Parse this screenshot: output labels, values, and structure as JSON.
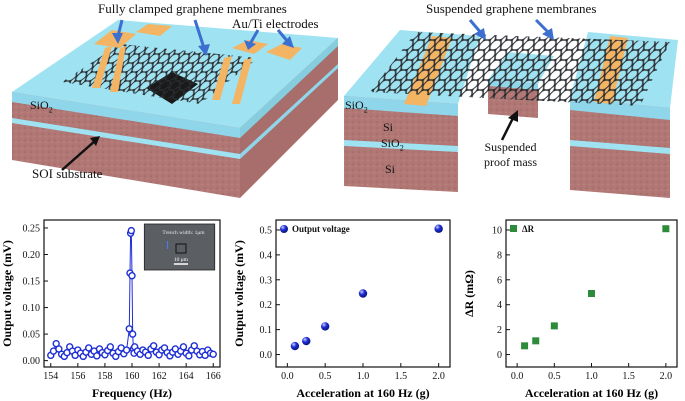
{
  "diagram_left": {
    "labels": {
      "fully_clamped": "Fully clamped graphene membranes",
      "electrodes": "Au/Ti electrodes",
      "sio2": "SiO",
      "sio2_sub": "2",
      "soi": "SOI substrate"
    }
  },
  "diagram_right": {
    "labels": {
      "suspended_membranes": "Suspended graphene membranes",
      "sio2_top": "SiO",
      "sio2_top_sub": "2",
      "si_upper": "Si",
      "sio2_mid": "SiO",
      "sio2_mid_sub": "2",
      "si_lower": "Si",
      "proof_mass_line1": "Suspended",
      "proof_mass_line2": "proof mass"
    }
  },
  "colors": {
    "sio2": "#9fe3f2",
    "substrate": "#b27a76",
    "electrode": "#f3b463",
    "graphene": "#3a3f48",
    "marker_blue": "#1f2fd6",
    "marker_green": "#2e8b3a"
  },
  "chart_data": [
    {
      "type": "line",
      "xlabel": "Frequency (Hz)",
      "ylabel": "Output voltage (mV)",
      "xlim": [
        153.5,
        166.5
      ],
      "ylim": [
        -0.012,
        0.265
      ],
      "xticks": [
        154,
        156,
        158,
        160,
        162,
        164,
        166
      ],
      "yticks": [
        0.0,
        0.05,
        0.1,
        0.15,
        0.2,
        0.25
      ],
      "inset": {
        "text": "Trench width: 1μm",
        "scale": "10 μm"
      },
      "series": [
        {
          "x": [
            154.0,
            154.2,
            154.4,
            154.6,
            154.8,
            155.0,
            155.2,
            155.4,
            155.6,
            155.8,
            156.0,
            156.2,
            156.4,
            156.6,
            156.8,
            157.0,
            157.2,
            157.4,
            157.6,
            157.8,
            158.0,
            158.2,
            158.4,
            158.6,
            158.8,
            159.0,
            159.2,
            159.4,
            159.6,
            159.8,
            159.85,
            159.9,
            159.95,
            160.0,
            160.05,
            160.1,
            160.15,
            160.2,
            160.4,
            160.6,
            160.8,
            161.0,
            161.2,
            161.4,
            161.6,
            161.8,
            162.0,
            162.2,
            162.4,
            162.6,
            162.8,
            163.0,
            163.2,
            163.4,
            163.6,
            163.8,
            164.0,
            164.2,
            164.4,
            164.6,
            164.8,
            165.0,
            165.2,
            165.4,
            165.6,
            165.8,
            166.0
          ],
          "values": [
            0.01,
            0.018,
            0.032,
            0.022,
            0.012,
            0.008,
            0.015,
            0.026,
            0.018,
            0.01,
            0.02,
            0.014,
            0.008,
            0.016,
            0.024,
            0.012,
            0.018,
            0.009,
            0.022,
            0.015,
            0.011,
            0.019,
            0.026,
            0.014,
            0.008,
            0.017,
            0.024,
            0.013,
            0.02,
            0.06,
            0.165,
            0.24,
            0.245,
            0.16,
            0.05,
            0.022,
            0.014,
            0.026,
            0.018,
            0.012,
            0.02,
            0.016,
            0.01,
            0.022,
            0.028,
            0.016,
            0.011,
            0.02,
            0.024,
            0.015,
            0.009,
            0.016,
            0.022,
            0.012,
            0.018,
            0.026,
            0.014,
            0.009,
            0.02,
            0.028,
            0.018,
            0.011,
            0.017,
            0.01,
            0.02,
            0.014,
            0.012
          ]
        }
      ]
    },
    {
      "type": "scatter",
      "xlabel": "Acceleration at 160 Hz (g)",
      "ylabel": "Output voltage (mV)",
      "xlim": [
        -0.15,
        2.15
      ],
      "ylim": [
        -0.05,
        0.54
      ],
      "xticks": [
        0.0,
        0.5,
        1.0,
        1.5,
        2.0
      ],
      "yticks": [
        0.0,
        0.1,
        0.2,
        0.3,
        0.4,
        0.5
      ],
      "legend": "Output voltage",
      "series": [
        {
          "name": "Output voltage",
          "x": [
            0.1,
            0.25,
            0.5,
            1.0,
            2.0
          ],
          "values": [
            0.034,
            0.054,
            0.113,
            0.245,
            0.505
          ]
        }
      ]
    },
    {
      "type": "scatter",
      "xlabel": "Acceleration at 160 Hz (g)",
      "ylabel": "ΔR (mΩ)",
      "xlim": [
        -0.15,
        2.15
      ],
      "ylim": [
        -1.0,
        10.8
      ],
      "xticks": [
        0.0,
        0.5,
        1.0,
        1.5,
        2.0
      ],
      "yticks": [
        0,
        2,
        4,
        6,
        8,
        10
      ],
      "legend": "ΔR",
      "series": [
        {
          "name": "ΔR",
          "x": [
            0.1,
            0.25,
            0.5,
            1.0,
            2.0
          ],
          "values": [
            0.7,
            1.1,
            2.3,
            4.9,
            10.1
          ]
        }
      ]
    }
  ]
}
